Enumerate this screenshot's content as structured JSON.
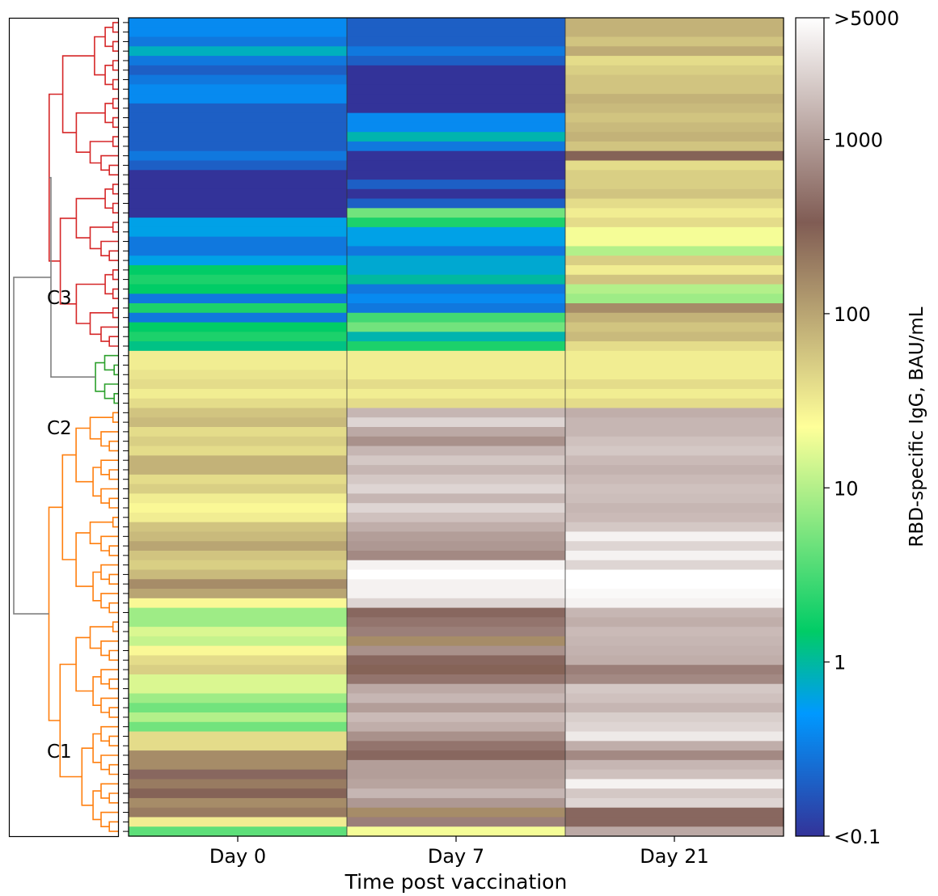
{
  "chart_data": {
    "type": "heatmap",
    "title": "",
    "xlabel": "Time post vaccination",
    "columns": [
      "Day 0",
      "Day 7",
      "Day 21"
    ],
    "colorbar": {
      "label": "RBD-specific IgG, BAU/mL",
      "scale": "log",
      "range": [
        0.1,
        5000
      ],
      "ticks": [
        {
          "value": 0.1,
          "label": "<0.1"
        },
        {
          "value": 1,
          "label": "1"
        },
        {
          "value": 10,
          "label": "10"
        },
        {
          "value": 100,
          "label": "100"
        },
        {
          "value": 1000,
          "label": "1000"
        },
        {
          "value": 5000,
          "label": ">5000"
        }
      ],
      "colormap": "terrain"
    },
    "dendrogram": {
      "clusters": [
        {
          "label": "C3",
          "color": "#d62728"
        },
        {
          "label": "C2",
          "color": "#2ca02c"
        },
        {
          "label": "C1",
          "color": "#ff7f0e"
        }
      ],
      "root_color": "#808080"
    },
    "clusters": [
      {
        "label": "C3",
        "color": "#d62728",
        "rows": [
          [
            0.4,
            0.2,
            80
          ],
          [
            0.4,
            0.2,
            80
          ],
          [
            0.3,
            0.2,
            60
          ],
          [
            0.8,
            0.3,
            90
          ],
          [
            0.3,
            0.2,
            40
          ],
          [
            0.2,
            0.1,
            50
          ],
          [
            0.3,
            0.1,
            60
          ],
          [
            0.4,
            0.1,
            60
          ],
          [
            0.4,
            0.1,
            80
          ],
          [
            0.2,
            0.1,
            70
          ],
          [
            0.2,
            0.4,
            60
          ],
          [
            0.2,
            0.4,
            70
          ],
          [
            0.2,
            0.9,
            80
          ],
          [
            0.2,
            0.3,
            60
          ],
          [
            0.3,
            0.1,
            300
          ],
          [
            0.2,
            0.1,
            40
          ],
          [
            0.1,
            0.1,
            50
          ],
          [
            0.1,
            0.2,
            50
          ],
          [
            0.1,
            0.1,
            60
          ],
          [
            0.1,
            0.2,
            40
          ],
          [
            0.1,
            5,
            30
          ],
          [
            0.6,
            2,
            40
          ],
          [
            0.6,
            0.6,
            20
          ],
          [
            0.3,
            0.6,
            20
          ],
          [
            0.3,
            0.3,
            10
          ],
          [
            0.6,
            0.7,
            50
          ],
          [
            1.5,
            0.7,
            30
          ],
          [
            2,
            1,
            60
          ],
          [
            1.5,
            0.3,
            10
          ],
          [
            0.3,
            0.4,
            8
          ],
          [
            2,
            0.3,
            150
          ],
          [
            0.3,
            3,
            80
          ],
          [
            1.5,
            5,
            60
          ],
          [
            2,
            0.9,
            70
          ],
          [
            1.2,
            2,
            40
          ]
        ]
      },
      {
        "label": "C2",
        "color": "#2ca02c",
        "rows": [
          [
            30,
            30,
            30
          ],
          [
            30,
            30,
            30
          ],
          [
            35,
            30,
            30
          ],
          [
            40,
            40,
            40
          ],
          [
            30,
            30,
            30
          ],
          [
            40,
            40,
            40
          ]
        ]
      },
      {
        "label": "C1",
        "color": "#ff7f0e",
        "rows": [
          [
            60,
            1500,
            1300
          ],
          [
            70,
            2500,
            1500
          ],
          [
            40,
            1200,
            1500
          ],
          [
            50,
            800,
            1800
          ],
          [
            40,
            1500,
            2000
          ],
          [
            80,
            2000,
            1600
          ],
          [
            80,
            1500,
            1400
          ],
          [
            40,
            2000,
            1600
          ],
          [
            50,
            2500,
            1800
          ],
          [
            30,
            1500,
            1700
          ],
          [
            25,
            2500,
            1500
          ],
          [
            30,
            1800,
            1600
          ],
          [
            60,
            1300,
            2000
          ],
          [
            70,
            1000,
            4000
          ],
          [
            100,
            900,
            2500
          ],
          [
            60,
            700,
            4000
          ],
          [
            50,
            4000,
            2500
          ],
          [
            70,
            5000,
            5000
          ],
          [
            150,
            4000,
            5000
          ],
          [
            100,
            4000,
            4500
          ],
          [
            25,
            2500,
            4000
          ],
          [
            8,
            400,
            1500
          ],
          [
            8,
            500,
            1300
          ],
          [
            15,
            600,
            1600
          ],
          [
            12,
            150,
            1500
          ],
          [
            25,
            800,
            1400
          ],
          [
            40,
            400,
            1300
          ],
          [
            50,
            300,
            600
          ],
          [
            15,
            500,
            700
          ],
          [
            15,
            1200,
            2000
          ],
          [
            8,
            1500,
            1800
          ],
          [
            5,
            1000,
            1500
          ],
          [
            10,
            1600,
            2200
          ],
          [
            5,
            1300,
            2500
          ],
          [
            40,
            800,
            3500
          ],
          [
            40,
            500,
            1300
          ],
          [
            150,
            400,
            700
          ],
          [
            150,
            1000,
            1500
          ],
          [
            400,
            1000,
            1800
          ],
          [
            200,
            1100,
            4000
          ],
          [
            300,
            1500,
            2000
          ],
          [
            150,
            900,
            2500
          ],
          [
            200,
            150,
            400
          ],
          [
            30,
            600,
            400
          ],
          [
            4,
            20,
            1200
          ]
        ]
      }
    ]
  }
}
